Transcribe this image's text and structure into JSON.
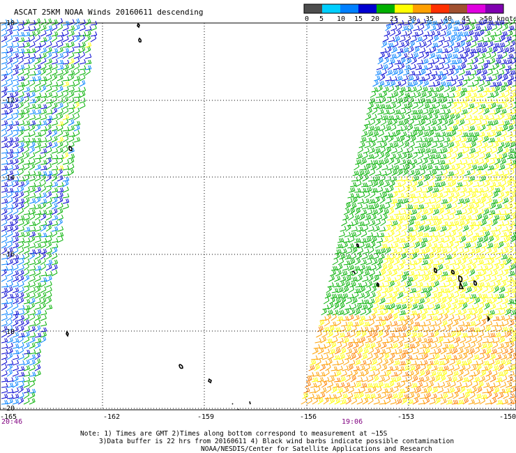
{
  "title": "ASCAT 25KM NOAA Winds 20160611 descending",
  "legend": {
    "labels": [
      "0",
      "5",
      "10",
      "15",
      "20",
      "25",
      "30",
      "35",
      "40",
      "45",
      ">50 knots"
    ],
    "colors": [
      "#4d4d4d",
      "#00cfff",
      "#0080ff",
      "#0000d0",
      "#00b000",
      "#ffff00",
      "#ffa000",
      "#ff3000",
      "#a05030",
      "#e000e0",
      "#8000b0"
    ]
  },
  "axes": {
    "lat_labels": [
      "-10",
      "-12",
      "-14",
      "-16",
      "-18",
      "-20"
    ],
    "lon_labels": [
      "-165",
      "-162",
      "-159",
      "-156",
      "-153",
      "-150"
    ]
  },
  "times": {
    "left_swath": "20:46",
    "right_swath": "19:06",
    "time_color": "#800080"
  },
  "notes": {
    "line1": "Note: 1) Times are GMT 2)Times along bottom correspond to measurement at ~15S",
    "line2": "3)Data buffer is 22 hrs from 20160611 4) Black wind barbs indicate possible contamination",
    "line3": "NOAA/NESDIS/Center for Satellite Applications and Research"
  },
  "wind_colors": {
    "low": "#0000d0",
    "light": "#0080ff",
    "moderate": "#00b000",
    "fresh": "#ffff00",
    "strong": "#ffa000",
    "strong_dark": "#ff8000"
  }
}
